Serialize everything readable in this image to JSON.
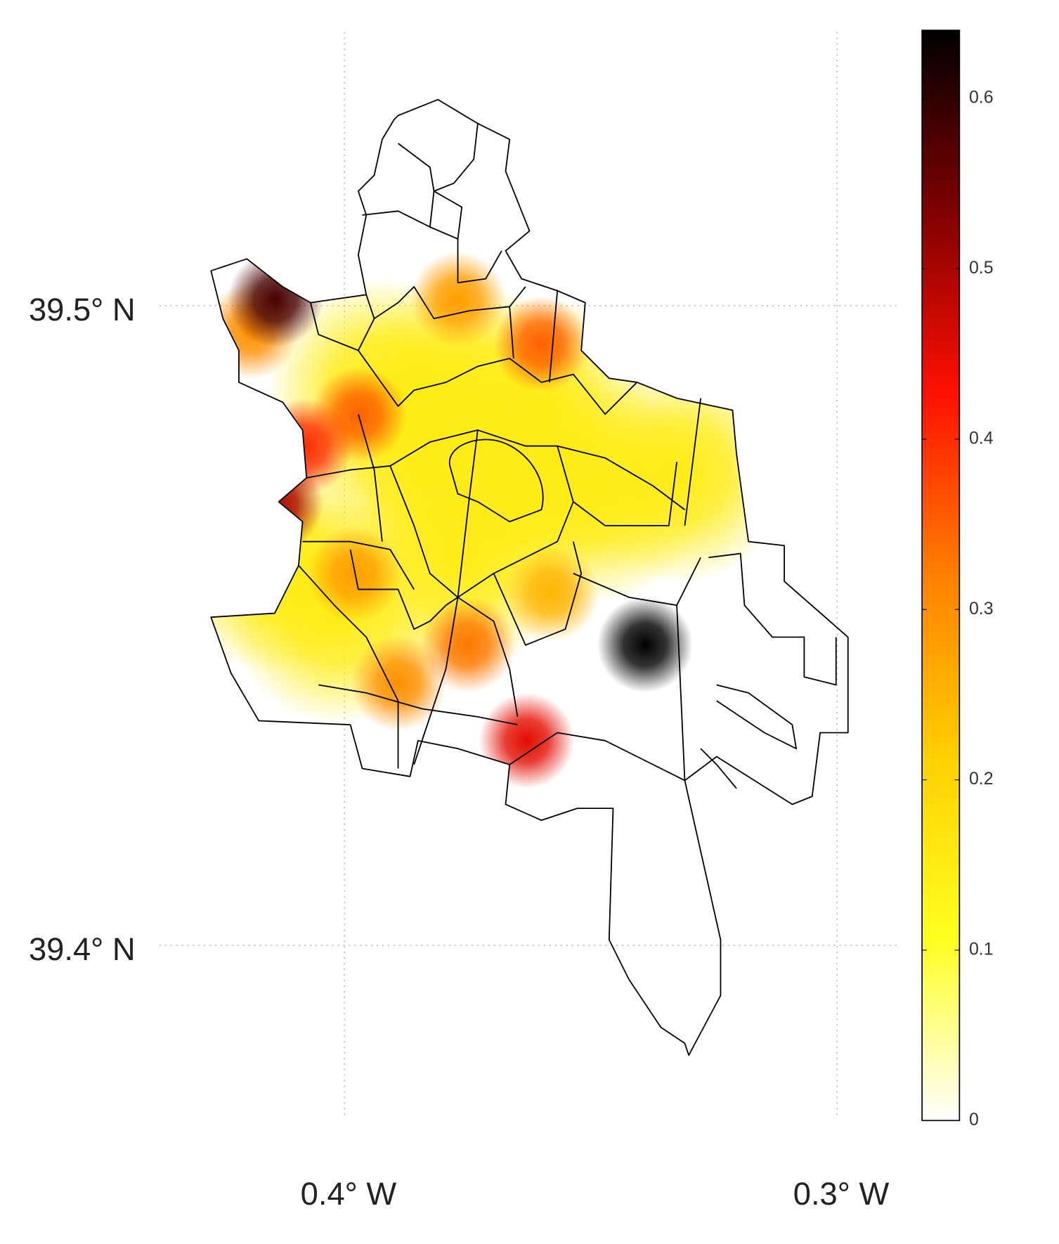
{
  "chart_data": {
    "type": "heatmap-map",
    "xlim": [
      -0.4376,
      -0.2873
    ],
    "ylim": [
      39.3735,
      39.5428
    ],
    "xticks": [
      {
        "value": -0.4,
        "label": "0.4° W"
      },
      {
        "value": -0.3,
        "label": "0.3° W"
      }
    ],
    "yticks": [
      {
        "value": 39.5,
        "label": "39.5° N"
      },
      {
        "value": 39.4,
        "label": "39.4° N"
      }
    ],
    "grid": true,
    "clim": [
      0,
      0.64
    ],
    "cticks": [
      0,
      0.1,
      0.2,
      0.3,
      0.4,
      0.5,
      0.6
    ],
    "colormap": [
      "#ffffff",
      "#ffff20",
      "#ffd000",
      "#ff8000",
      "#ff1000",
      "#800000",
      "#000000"
    ],
    "hotspots": [
      {
        "lon": -0.384,
        "lat": 39.474,
        "value": 0.15
      },
      {
        "lon": -0.365,
        "lat": 39.471,
        "value": 0.15
      },
      {
        "lon": -0.349,
        "lat": 39.471,
        "value": 0.15
      },
      {
        "lon": -0.393,
        "lat": 39.487,
        "value": 0.15
      },
      {
        "lon": -0.377,
        "lat": 39.487,
        "value": 0.15
      },
      {
        "lon": -0.332,
        "lat": 39.474,
        "value": 0.15
      },
      {
        "lon": -0.401,
        "lat": 39.452,
        "value": 0.15
      },
      {
        "lon": -0.377,
        "lat": 39.46,
        "value": 0.15
      },
      {
        "lon": -0.414,
        "lat": 39.46,
        "value": 0.15
      },
      {
        "lon": -0.36,
        "lat": 39.484,
        "value": 0.15
      },
      {
        "lon": -0.398,
        "lat": 39.458,
        "value": 0.28
      },
      {
        "lon": -0.358,
        "lat": 39.455,
        "value": 0.25
      },
      {
        "lon": -0.389,
        "lat": 39.441,
        "value": 0.3
      },
      {
        "lon": -0.375,
        "lat": 39.447,
        "value": 0.33
      },
      {
        "lon": -0.377,
        "lat": 39.501,
        "value": 0.28
      },
      {
        "lon": -0.419,
        "lat": 39.496,
        "value": 0.3
      },
      {
        "lon": -0.397,
        "lat": 39.483,
        "value": 0.35
      },
      {
        "lon": -0.36,
        "lat": 39.494,
        "value": 0.35
      },
      {
        "lon": -0.408,
        "lat": 39.478,
        "value": 0.4
      },
      {
        "lon": -0.363,
        "lat": 39.432,
        "value": 0.45
      },
      {
        "lon": -0.414,
        "lat": 39.469,
        "value": 0.5
      },
      {
        "lon": -0.414,
        "lat": 39.501,
        "value": 0.58
      },
      {
        "lon": -0.339,
        "lat": 39.447,
        "value": 0.64
      }
    ]
  }
}
